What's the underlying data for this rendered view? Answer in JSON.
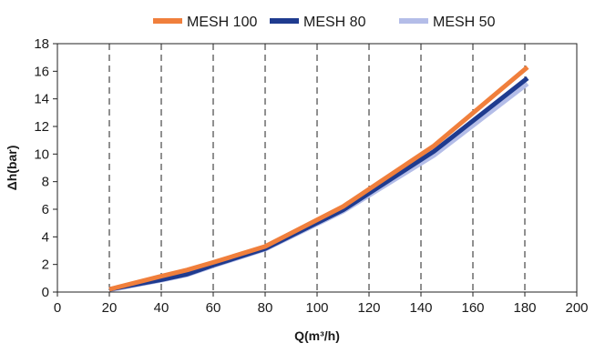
{
  "chart_data": {
    "type": "line",
    "title": "",
    "xlabel": "Q(m³/h)",
    "ylabel": "Δh(bar)",
    "xlim": [
      0,
      200
    ],
    "ylim": [
      0,
      18
    ],
    "xticks": [
      0,
      20,
      40,
      60,
      80,
      100,
      120,
      140,
      160,
      180,
      200
    ],
    "yticks": [
      0,
      2,
      4,
      6,
      8,
      10,
      12,
      14,
      16,
      18
    ],
    "grid": "vertical-dashed",
    "legend_position": "top",
    "series": [
      {
        "name": "MESH 100",
        "color": "#f07f3c",
        "x": [
          20,
          40,
          50,
          60,
          80,
          110,
          145,
          181
        ],
        "y": [
          0.2,
          1.15,
          1.6,
          2.15,
          3.3,
          6.2,
          10.6,
          16.3
        ]
      },
      {
        "name": "MESH 80",
        "color": "#1f3b8f",
        "x": [
          20,
          40,
          50,
          60,
          80,
          110,
          145,
          181
        ],
        "y": [
          0.2,
          0.9,
          1.3,
          1.95,
          3.15,
          5.95,
          10.2,
          15.5
        ]
      },
      {
        "name": "MESH 50",
        "color": "#b4bde8",
        "x": [
          20,
          40,
          50,
          60,
          80,
          110,
          145,
          181
        ],
        "y": [
          0.15,
          0.85,
          1.25,
          1.9,
          3.1,
          5.85,
          9.9,
          15.1
        ]
      }
    ]
  }
}
